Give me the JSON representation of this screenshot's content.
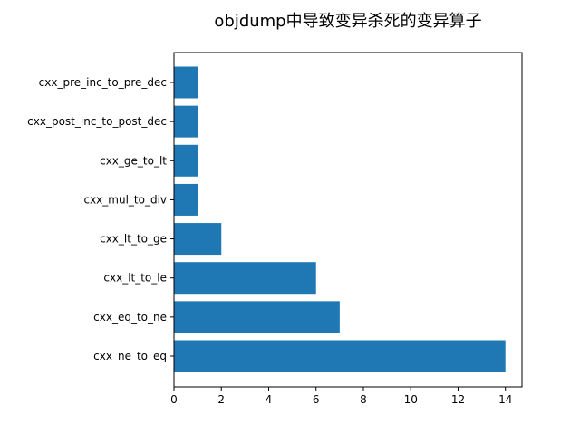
{
  "chart_data": {
    "type": "bar",
    "orientation": "horizontal",
    "title": "objdump中导致变异杀死的变异算子",
    "xlabel": "",
    "ylabel": "",
    "categories": [
      "cxx_pre_inc_to_pre_dec",
      "cxx_post_inc_to_post_dec",
      "cxx_ge_to_lt",
      "cxx_mul_to_div",
      "cxx_lt_to_ge",
      "cxx_lt_to_le",
      "cxx_eq_to_ne",
      "cxx_ne_to_eq"
    ],
    "values": [
      1,
      1,
      1,
      1,
      2,
      6,
      7,
      14
    ],
    "xlim": [
      0,
      14.7
    ],
    "xticks": [
      0,
      2,
      4,
      6,
      8,
      10,
      12,
      14
    ],
    "bar_color": "#1f77b4",
    "grid": false,
    "legend": "none"
  }
}
